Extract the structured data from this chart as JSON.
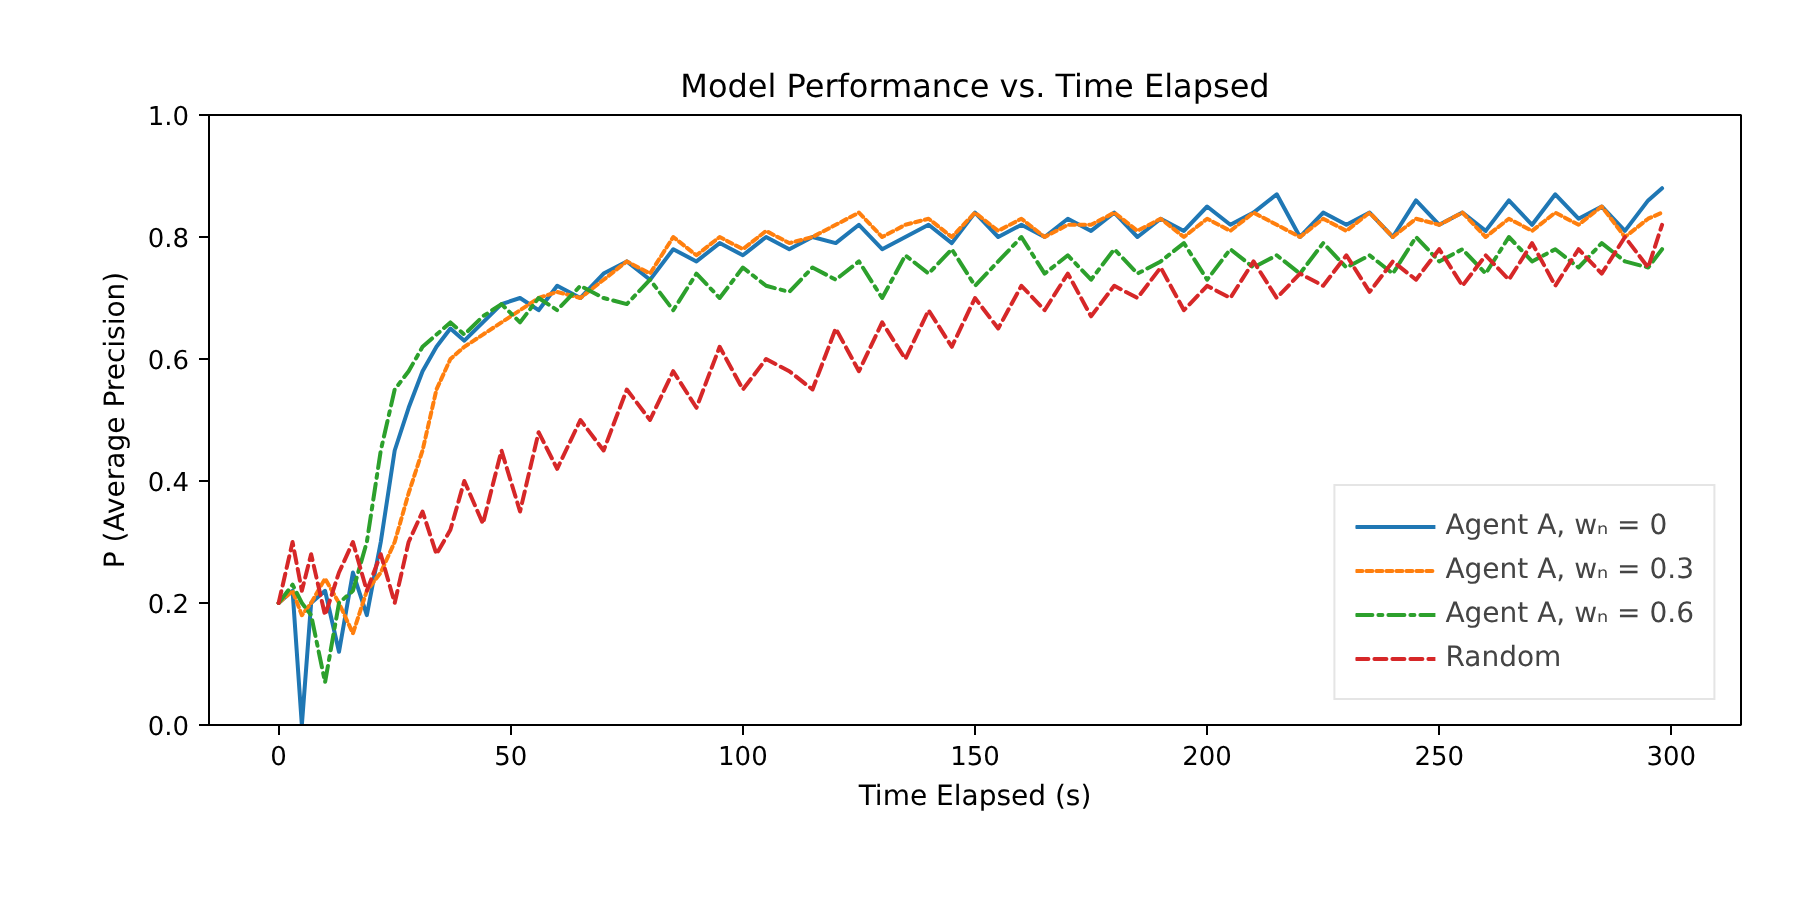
{
  "chart_data": {
    "type": "line",
    "title": "Model Performance vs. Time Elapsed",
    "xlabel": "Time Elapsed (s)",
    "ylabel": "P (Average Precision)",
    "x": [
      0,
      3,
      5,
      7,
      10,
      13,
      16,
      19,
      22,
      25,
      28,
      31,
      34,
      37,
      40,
      44,
      48,
      52,
      56,
      60,
      65,
      70,
      75,
      80,
      85,
      90,
      95,
      100,
      105,
      110,
      115,
      120,
      125,
      130,
      135,
      140,
      145,
      150,
      155,
      160,
      165,
      170,
      175,
      180,
      185,
      190,
      195,
      200,
      205,
      210,
      215,
      220,
      225,
      230,
      235,
      240,
      245,
      250,
      255,
      260,
      265,
      270,
      275,
      280,
      285,
      290,
      295,
      298
    ],
    "series": [
      {
        "name": "Agent A, wₙ = 0",
        "color": "#1f77b4",
        "line_style": "solid",
        "values": [
          0.2,
          0.22,
          0.0,
          0.2,
          0.22,
          0.12,
          0.25,
          0.18,
          0.3,
          0.45,
          0.52,
          0.58,
          0.62,
          0.65,
          0.63,
          0.66,
          0.69,
          0.7,
          0.68,
          0.72,
          0.7,
          0.74,
          0.76,
          0.73,
          0.78,
          0.76,
          0.79,
          0.77,
          0.8,
          0.78,
          0.8,
          0.79,
          0.82,
          0.78,
          0.8,
          0.82,
          0.79,
          0.84,
          0.8,
          0.82,
          0.8,
          0.83,
          0.81,
          0.84,
          0.8,
          0.83,
          0.81,
          0.85,
          0.82,
          0.84,
          0.87,
          0.8,
          0.84,
          0.82,
          0.84,
          0.8,
          0.86,
          0.82,
          0.84,
          0.81,
          0.86,
          0.82,
          0.87,
          0.83,
          0.85,
          0.81,
          0.86,
          0.88
        ]
      },
      {
        "name": "Agent A, wₙ = 0.3",
        "color": "#ff7f0e",
        "line_style": "dotted",
        "values": [
          0.2,
          0.22,
          0.18,
          0.2,
          0.24,
          0.2,
          0.15,
          0.22,
          0.25,
          0.3,
          0.38,
          0.45,
          0.55,
          0.6,
          0.62,
          0.64,
          0.66,
          0.68,
          0.7,
          0.71,
          0.7,
          0.73,
          0.76,
          0.74,
          0.8,
          0.77,
          0.8,
          0.78,
          0.81,
          0.79,
          0.8,
          0.82,
          0.84,
          0.8,
          0.82,
          0.83,
          0.8,
          0.84,
          0.81,
          0.83,
          0.8,
          0.82,
          0.82,
          0.84,
          0.81,
          0.83,
          0.8,
          0.83,
          0.81,
          0.84,
          0.82,
          0.8,
          0.83,
          0.81,
          0.84,
          0.8,
          0.83,
          0.82,
          0.84,
          0.8,
          0.83,
          0.81,
          0.84,
          0.82,
          0.85,
          0.8,
          0.83,
          0.84
        ]
      },
      {
        "name": "Agent A, wₙ = 0.6",
        "color": "#2ca02c",
        "line_style": "dashdot",
        "values": [
          0.2,
          0.23,
          0.2,
          0.18,
          0.07,
          0.2,
          0.22,
          0.3,
          0.45,
          0.55,
          0.58,
          0.62,
          0.64,
          0.66,
          0.64,
          0.67,
          0.69,
          0.66,
          0.7,
          0.68,
          0.72,
          0.7,
          0.69,
          0.73,
          0.68,
          0.74,
          0.7,
          0.75,
          0.72,
          0.71,
          0.75,
          0.73,
          0.76,
          0.7,
          0.77,
          0.74,
          0.78,
          0.72,
          0.76,
          0.8,
          0.74,
          0.77,
          0.73,
          0.78,
          0.74,
          0.76,
          0.79,
          0.73,
          0.78,
          0.75,
          0.77,
          0.74,
          0.79,
          0.75,
          0.77,
          0.74,
          0.8,
          0.76,
          0.78,
          0.74,
          0.8,
          0.76,
          0.78,
          0.75,
          0.79,
          0.76,
          0.75,
          0.78
        ]
      },
      {
        "name": "Random",
        "color": "#d62728",
        "line_style": "dashed",
        "values": [
          0.2,
          0.3,
          0.22,
          0.28,
          0.18,
          0.25,
          0.3,
          0.22,
          0.28,
          0.2,
          0.3,
          0.35,
          0.28,
          0.32,
          0.4,
          0.33,
          0.45,
          0.35,
          0.48,
          0.42,
          0.5,
          0.45,
          0.55,
          0.5,
          0.58,
          0.52,
          0.62,
          0.55,
          0.6,
          0.58,
          0.55,
          0.65,
          0.58,
          0.66,
          0.6,
          0.68,
          0.62,
          0.7,
          0.65,
          0.72,
          0.68,
          0.74,
          0.67,
          0.72,
          0.7,
          0.75,
          0.68,
          0.72,
          0.7,
          0.76,
          0.7,
          0.74,
          0.72,
          0.77,
          0.71,
          0.76,
          0.73,
          0.78,
          0.72,
          0.77,
          0.73,
          0.79,
          0.72,
          0.78,
          0.74,
          0.8,
          0.75,
          0.82
        ]
      }
    ],
    "xlim": [
      -15,
      315
    ],
    "xticks": [
      0,
      50,
      100,
      150,
      200,
      250,
      300
    ],
    "ylim": [
      0,
      1
    ],
    "yticks": [
      {
        "value": 0,
        "label": "0.0"
      },
      0.2,
      0.4,
      0.6,
      0.8,
      {
        "value": 1,
        "label": "1.0"
      }
    ],
    "grid": false,
    "legend": "bottom right"
  }
}
